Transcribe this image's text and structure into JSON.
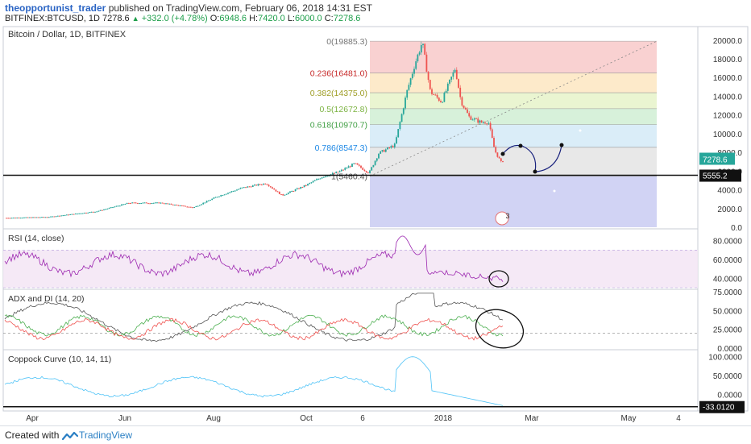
{
  "header": {
    "author": "theopportunist_trader",
    "published_text": "published on TradingView.com, February 06, 2018 14:31 EST",
    "symbol": "BITFINEX:BTCUSD, 1D",
    "last": "7278.6",
    "arrow_icon": "triangle-up-icon",
    "change": "+332.0 (+4.78%)",
    "open_label": "O:",
    "open": "6948.6",
    "high_label": "H:",
    "high": "7420.0",
    "low_label": "L:",
    "low": "6000.0",
    "close_label": "C:",
    "close": "7278.6"
  },
  "footer": {
    "created_with": "Created with",
    "brand": "TradingView",
    "logo_icon": "tradingview-logo-icon"
  },
  "colors": {
    "up": "#26a69a",
    "down": "#ef5350",
    "rsi": "#9c27b0",
    "adx": "#555555",
    "di_plus": "#4caf50",
    "di_minus": "#ef5350",
    "coppock": "#4fc3f7",
    "annot": "#1a237e"
  },
  "chart_data": [
    {
      "type": "line",
      "pane": "price",
      "title": "Bitcoin / Dollar, 1D, BITFINEX",
      "y_axis_labels": [
        "20000.0",
        "18000.0",
        "16000.0",
        "14000.0",
        "12000.0",
        "10000.0",
        "8000.0",
        "6000.0",
        "4000.0",
        "2000.0",
        "0.0"
      ],
      "ylim": [
        0,
        20500
      ],
      "x_axis_labels": [
        "Apr",
        "Jun",
        "Aug",
        "Oct",
        "6",
        "2018",
        "Mar",
        "May",
        "4"
      ],
      "price_tag": "7278.6",
      "support_line_label": "5555.2",
      "support_level": 5555.2,
      "series": [
        {
          "x": [
            "2017-03",
            "2017-04",
            "2017-05",
            "2017-06",
            "2017-07",
            "2017-08",
            "2017-09",
            "2017-10",
            "2017-11",
            "2017-12-01",
            "2017-12-17",
            "2018-01-01",
            "2018-01-15",
            "2018-02-06"
          ],
          "values": [
            1000,
            1200,
            2000,
            2600,
            2700,
            3800,
            4300,
            4900,
            7500,
            10000,
            19800,
            13500,
            11500,
            7278.6
          ]
        }
      ],
      "fib_levels": [
        {
          "ratio_label": "0(19885.3)",
          "price": 19885.3,
          "color": "#f7c1c1"
        },
        {
          "ratio_label": "0.236(16481.0)",
          "price": 16481.0,
          "color": "#fce3b8"
        },
        {
          "ratio_label": "0.382(14375.0)",
          "price": 14375.0,
          "color": "#e3f2c2"
        },
        {
          "ratio_label": "0.5(12672.8)",
          "price": 12672.8,
          "color": "#c9eccd"
        },
        {
          "ratio_label": "0.618(10970.7)",
          "price": 10970.7,
          "color": "#cde7f5"
        },
        {
          "ratio_label": "0.786(8547.3)",
          "price": 8547.3,
          "color": "#e0e0e0"
        },
        {
          "ratio_label": "1(5460.4)",
          "price": 5460.4,
          "color": "#d6d8f5"
        }
      ],
      "annotation_badge": "3"
    },
    {
      "type": "line",
      "pane": "rsi",
      "title": "RSI (14, close)",
      "y_axis_labels": [
        "80.0000",
        "60.0000",
        "40.0000"
      ],
      "ylim": [
        30,
        90
      ],
      "band": [
        30,
        70
      ]
    },
    {
      "type": "line",
      "pane": "adx",
      "title": "ADX and DI (14, 20)",
      "y_axis_labels": [
        "75.0000",
        "50.0000",
        "25.0000",
        "0.0000"
      ],
      "ylim": [
        0,
        75
      ],
      "reference_level": 20
    },
    {
      "type": "line",
      "pane": "coppock",
      "title": "Coppock Curve (10, 14, 11)",
      "y_axis_labels": [
        "100.0000",
        "50.0000",
        "0.0000"
      ],
      "ylim": [
        -40,
        110
      ],
      "value_tag": "-33.0120"
    }
  ]
}
